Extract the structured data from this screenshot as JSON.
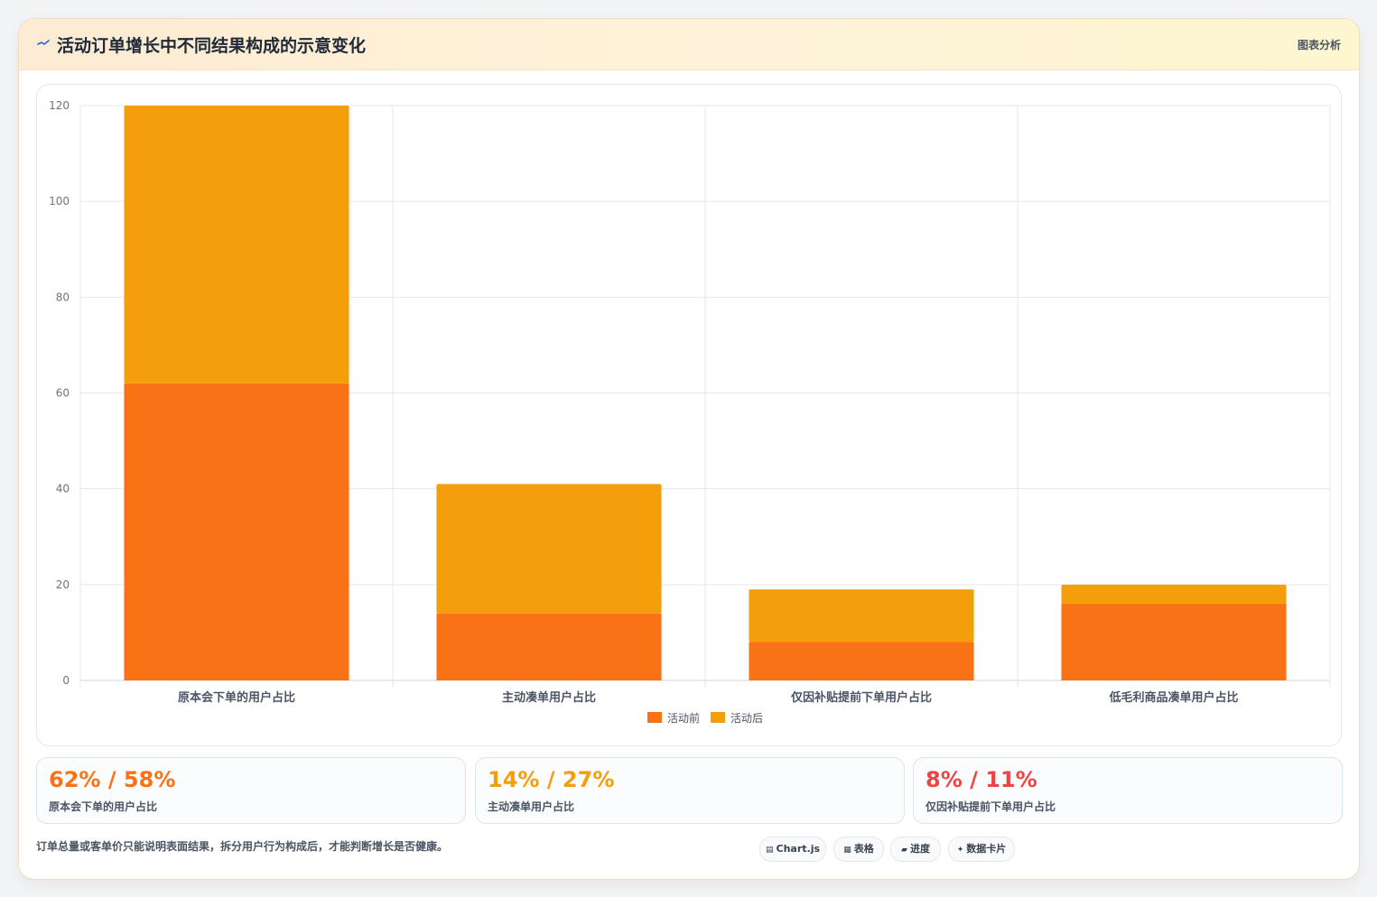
{
  "header": {
    "title": "活动订单增长中不同结果构成的示意变化",
    "tag": "图表分析",
    "title_icon": "trend-line-icon",
    "title_icon_color": "#2563eb"
  },
  "chart_data": {
    "type": "bar",
    "stacked": true,
    "categories": [
      "原本会下单的用户占比",
      "主动凑单用户占比",
      "仅因补贴提前下单用户占比",
      "低毛利商品凑单用户占比"
    ],
    "series": [
      {
        "name": "活动前",
        "values": [
          62,
          14,
          8,
          16
        ],
        "color": "#f97316"
      },
      {
        "name": "活动后",
        "values": [
          58,
          27,
          11,
          4
        ],
        "color": "#f59e0b"
      }
    ],
    "ylim": [
      0,
      120
    ],
    "yticks": [
      0,
      20,
      40,
      60,
      80,
      100,
      120
    ],
    "grid": true,
    "legend": "bottom"
  },
  "stats": [
    {
      "value": "62% / 58%",
      "label": "原本会下单的用户占比",
      "color": "#f97316"
    },
    {
      "value": "14% / 27%",
      "label": "主动凑单用户占比",
      "color": "#f59e0b"
    },
    {
      "value": "8% / 11%",
      "label": "仅因补贴提前下单用户占比",
      "color": "#ef4444"
    }
  ],
  "footer": {
    "note": "订单总量或客单价只能说明表面结果，拆分用户行为构成后，才能判断增长是否健康。",
    "chips": [
      {
        "label": "Chart.js",
        "icon": "chart-icon"
      },
      {
        "label": "表格",
        "icon": "table-icon"
      },
      {
        "label": "进度",
        "icon": "progress-icon"
      },
      {
        "label": "数据卡片",
        "icon": "card-icon"
      }
    ]
  }
}
